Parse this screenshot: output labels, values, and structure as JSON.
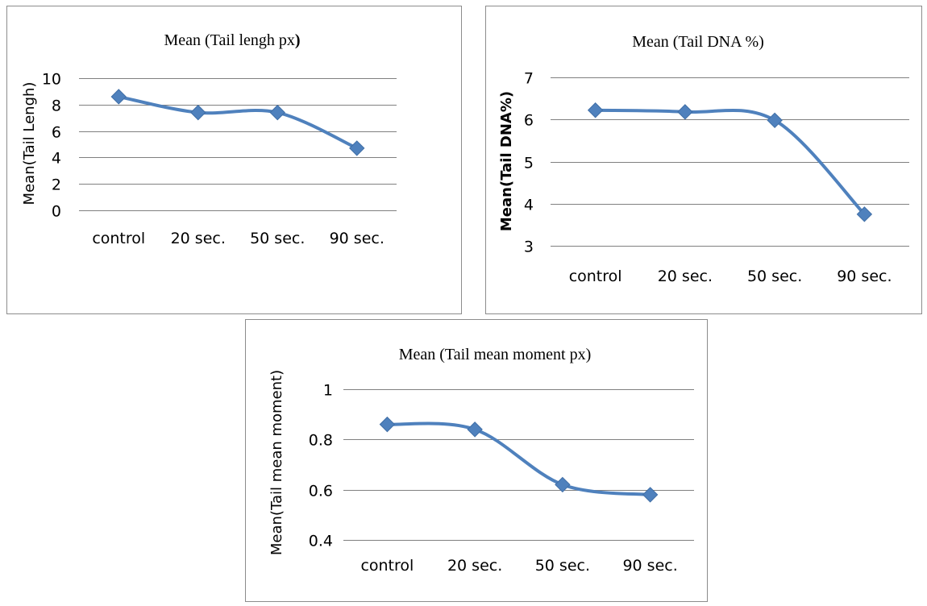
{
  "chart_data": [
    {
      "type": "line",
      "title": "Mean (Tail lengh px",
      "title_suffix": ")",
      "xlabel": "",
      "ylabel": "Mean(Tail Lengh)",
      "categories": [
        "control",
        "20 sec.",
        "50 sec.",
        "90 sec."
      ],
      "series": [
        {
          "values": [
            8.6,
            7.4,
            7.4,
            4.7
          ]
        }
      ],
      "ylim": [
        0,
        10
      ],
      "yticks": [
        0,
        2,
        4,
        6,
        8,
        10
      ],
      "smooth": true,
      "marker": "diamond",
      "grid": true,
      "legend": "none",
      "color": "#4f81bd"
    },
    {
      "type": "line",
      "title": "Mean (Tail DNA %)",
      "xlabel": "",
      "ylabel": "Mean(Tail DNA%)",
      "categories": [
        "control",
        "20 sec.",
        "50 sec.",
        "90 sec."
      ],
      "series": [
        {
          "values": [
            6.22,
            6.18,
            5.98,
            3.75
          ]
        }
      ],
      "ylim": [
        3,
        7
      ],
      "yticks": [
        3,
        4,
        5,
        6,
        7
      ],
      "smooth": true,
      "marker": "diamond",
      "grid": true,
      "legend": "none",
      "color": "#4f81bd"
    },
    {
      "type": "line",
      "title": "Mean (Tail mean moment px)",
      "xlabel": "",
      "ylabel": "Mean(Tail mean moment)",
      "categories": [
        "control",
        "20 sec.",
        "50 sec.",
        "90 sec."
      ],
      "series": [
        {
          "values": [
            0.86,
            0.84,
            0.62,
            0.58
          ]
        }
      ],
      "ylim": [
        0.4,
        1
      ],
      "yticks": [
        0.4,
        0.6,
        0.8,
        1
      ],
      "ytick_labels": [
        "0.4",
        "0.6",
        "0.8",
        "1"
      ],
      "smooth": true,
      "marker": "diamond",
      "grid": true,
      "legend": "none",
      "color": "#4f81bd"
    }
  ]
}
